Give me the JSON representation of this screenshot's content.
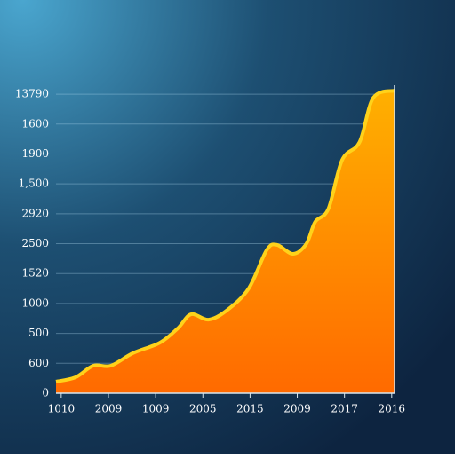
{
  "chart_data": {
    "type": "area",
    "x": [
      -0.11,
      0.3,
      0.68,
      1.05,
      1.52,
      2.09,
      2.47,
      2.75,
      3.12,
      3.5,
      3.97,
      4.35,
      4.57,
      4.91,
      5.19,
      5.38,
      5.66,
      5.95,
      6.32,
      6.61,
      7.06
    ],
    "values": [
      0.39,
      0.53,
      0.92,
      0.92,
      1.34,
      1.69,
      2.17,
      2.64,
      2.46,
      2.76,
      3.5,
      4.78,
      4.96,
      4.66,
      4.99,
      5.73,
      6.17,
      7.8,
      8.4,
      9.88,
      10.12
    ],
    "color": "#ff9500",
    "xlim": [
      -0.11,
      7.06
    ],
    "ylim": [
      0,
      10.3
    ],
    "xticks": [
      {
        "value": 0,
        "label": "1010"
      },
      {
        "value": 1,
        "label": "2009"
      },
      {
        "value": 2,
        "label": "1009"
      },
      {
        "value": 3,
        "label": "2005"
      },
      {
        "value": 4,
        "label": "2015"
      },
      {
        "value": 5,
        "label": "2009"
      },
      {
        "value": 6,
        "label": "2017"
      },
      {
        "value": 7,
        "label": "2016"
      }
    ],
    "yticks": [
      0,
      {
        "value": 1,
        "label": "600"
      },
      {
        "value": 2,
        "label": "500"
      },
      {
        "value": 3,
        "label": "1000"
      },
      {
        "value": 4,
        "label": "1520"
      },
      {
        "value": 5,
        "label": "2500"
      },
      {
        "value": 6,
        "label": "2920"
      },
      {
        "value": 7,
        "label": "1,500"
      },
      {
        "value": 8,
        "label": "1900"
      },
      {
        "value": 9,
        "label": "1600"
      },
      {
        "value": 10,
        "label": "13790"
      }
    ],
    "grid": true
  }
}
